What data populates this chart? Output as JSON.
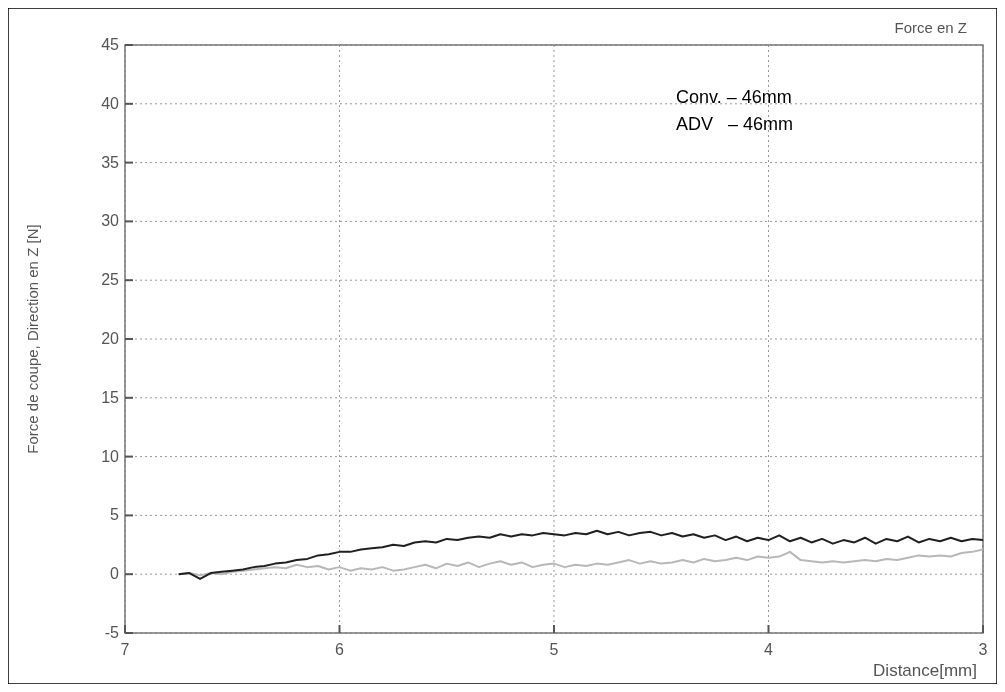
{
  "chart_data": {
    "type": "line",
    "title": "Force en Z",
    "xlabel": "Distance[mm]",
    "ylabel": "Force de coupe, Direction en Z [N]",
    "annotations": [
      "Conv. – 46mm",
      "ADV   – 46mm"
    ],
    "x": [
      6.75,
      6.7,
      6.65,
      6.6,
      6.55,
      6.5,
      6.45,
      6.4,
      6.35,
      6.3,
      6.25,
      6.2,
      6.15,
      6.1,
      6.05,
      6.0,
      5.95,
      5.9,
      5.85,
      5.8,
      5.75,
      5.7,
      5.65,
      5.6,
      5.55,
      5.5,
      5.45,
      5.4,
      5.35,
      5.3,
      5.25,
      5.2,
      5.15,
      5.1,
      5.05,
      5.0,
      4.95,
      4.9,
      4.85,
      4.8,
      4.75,
      4.7,
      4.65,
      4.6,
      4.55,
      4.5,
      4.45,
      4.4,
      4.35,
      4.3,
      4.25,
      4.2,
      4.15,
      4.1,
      4.05,
      4.0,
      3.95,
      3.9,
      3.85,
      3.8,
      3.75,
      3.7,
      3.65,
      3.6,
      3.55,
      3.5,
      3.45,
      3.4,
      3.35,
      3.3,
      3.25,
      3.2,
      3.15,
      3.1,
      3.05,
      3.0
    ],
    "series": [
      {
        "color": "#b8b8b8",
        "values": [
          0,
          0.1,
          -0.1,
          0.1,
          0.0,
          0.2,
          0.3,
          0.4,
          0.5,
          0.6,
          0.5,
          0.8,
          0.6,
          0.7,
          0.4,
          0.6,
          0.3,
          0.5,
          0.4,
          0.6,
          0.3,
          0.4,
          0.6,
          0.8,
          0.5,
          0.9,
          0.7,
          1.0,
          0.6,
          0.9,
          1.1,
          0.8,
          1.0,
          0.6,
          0.8,
          0.9,
          0.6,
          0.8,
          0.7,
          0.9,
          0.8,
          1.0,
          1.2,
          0.9,
          1.1,
          0.9,
          1.0,
          1.2,
          1.0,
          1.3,
          1.1,
          1.2,
          1.4,
          1.2,
          1.5,
          1.4,
          1.5,
          1.9,
          1.2,
          1.1,
          1.0,
          1.1,
          1.0,
          1.1,
          1.2,
          1.1,
          1.3,
          1.2,
          1.4,
          1.6,
          1.5,
          1.6,
          1.5,
          1.8,
          1.9,
          2.1
        ]
      },
      {
        "color": "#202020",
        "values": [
          0,
          0.1,
          -0.4,
          0.1,
          0.2,
          0.3,
          0.4,
          0.6,
          0.7,
          0.9,
          1.0,
          1.2,
          1.3,
          1.6,
          1.7,
          1.9,
          1.9,
          2.1,
          2.2,
          2.3,
          2.5,
          2.4,
          2.7,
          2.8,
          2.7,
          3.0,
          2.9,
          3.1,
          3.2,
          3.1,
          3.4,
          3.2,
          3.4,
          3.3,
          3.5,
          3.4,
          3.3,
          3.5,
          3.4,
          3.7,
          3.4,
          3.6,
          3.3,
          3.5,
          3.6,
          3.3,
          3.5,
          3.2,
          3.4,
          3.1,
          3.3,
          2.9,
          3.2,
          2.8,
          3.1,
          2.9,
          3.3,
          2.8,
          3.1,
          2.7,
          3.0,
          2.6,
          2.9,
          2.7,
          3.1,
          2.6,
          3.0,
          2.8,
          3.2,
          2.7,
          3.0,
          2.8,
          3.1,
          2.8,
          3.0,
          2.9
        ]
      }
    ],
    "xlim": [
      7,
      3
    ],
    "xticks": [
      7,
      6,
      5,
      4,
      3
    ],
    "ylim": [
      -5,
      45
    ],
    "yticks": [
      -5,
      0,
      5,
      10,
      15,
      20,
      25,
      30,
      35,
      40,
      45
    ],
    "grid": true,
    "line_style": "solid",
    "marker": "none"
  }
}
